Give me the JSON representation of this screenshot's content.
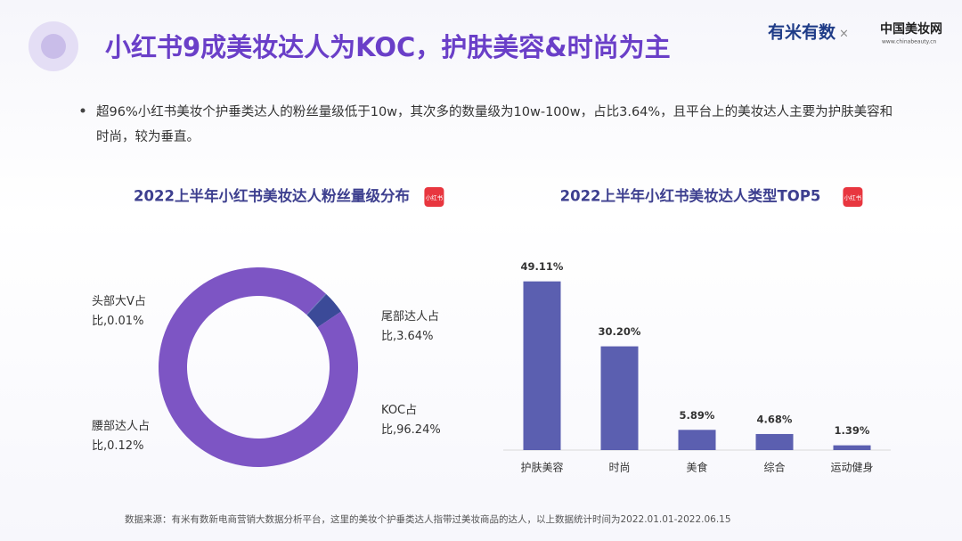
{
  "header": {
    "title": "小红书9成美妆达人为KOC，护肤美容&时尚为主",
    "logo_left": "有米有数",
    "logo_sep": "×",
    "logo_right": "中国美妆网",
    "logo_right_url": "www.chinabeauty.cn"
  },
  "bullet": "超96%小红书美妆个护垂类达人的粉丝量级低于10w，其次多的数量级为10w-100w，占比3.64%，且平台上的美妆达人主要为护肤美容和时尚，较为垂直。",
  "badge": "小红书",
  "source": "数据来源：有米有数新电商营销大数据分析平台，这里的美妆个护垂类达人指带过美妆商品的达人，以上数据统计时间为2022.01.01-2022.06.15",
  "chart_data": [
    {
      "type": "donut",
      "title": "2022上半年小红书美妆达人粉丝量级分布",
      "values": [
        3.64,
        96.24,
        0.12,
        0.01
      ],
      "value_labels": [
        "尾部达人占比,3.64%",
        "KOC占比,96.24%",
        "腰部达人占比,0.12%",
        "头部大V占比,0.01%"
      ],
      "colors": [
        "#3b4a98",
        "#7d55c4",
        "#5d6ab8",
        "#2c3a86"
      ]
    },
    {
      "type": "bar",
      "title": "2022上半年小红书美妆达人类型TOP5",
      "categories": [
        "护肤美容",
        "时尚",
        "美食",
        "综合",
        "运动健身"
      ],
      "values": [
        49.11,
        30.2,
        5.89,
        4.68,
        1.39
      ],
      "value_labels": [
        "49.11%",
        "30.20%",
        "5.89%",
        "4.68%",
        "1.39%"
      ],
      "color": "#5b5fb0",
      "ylim": [
        0,
        55
      ]
    }
  ]
}
